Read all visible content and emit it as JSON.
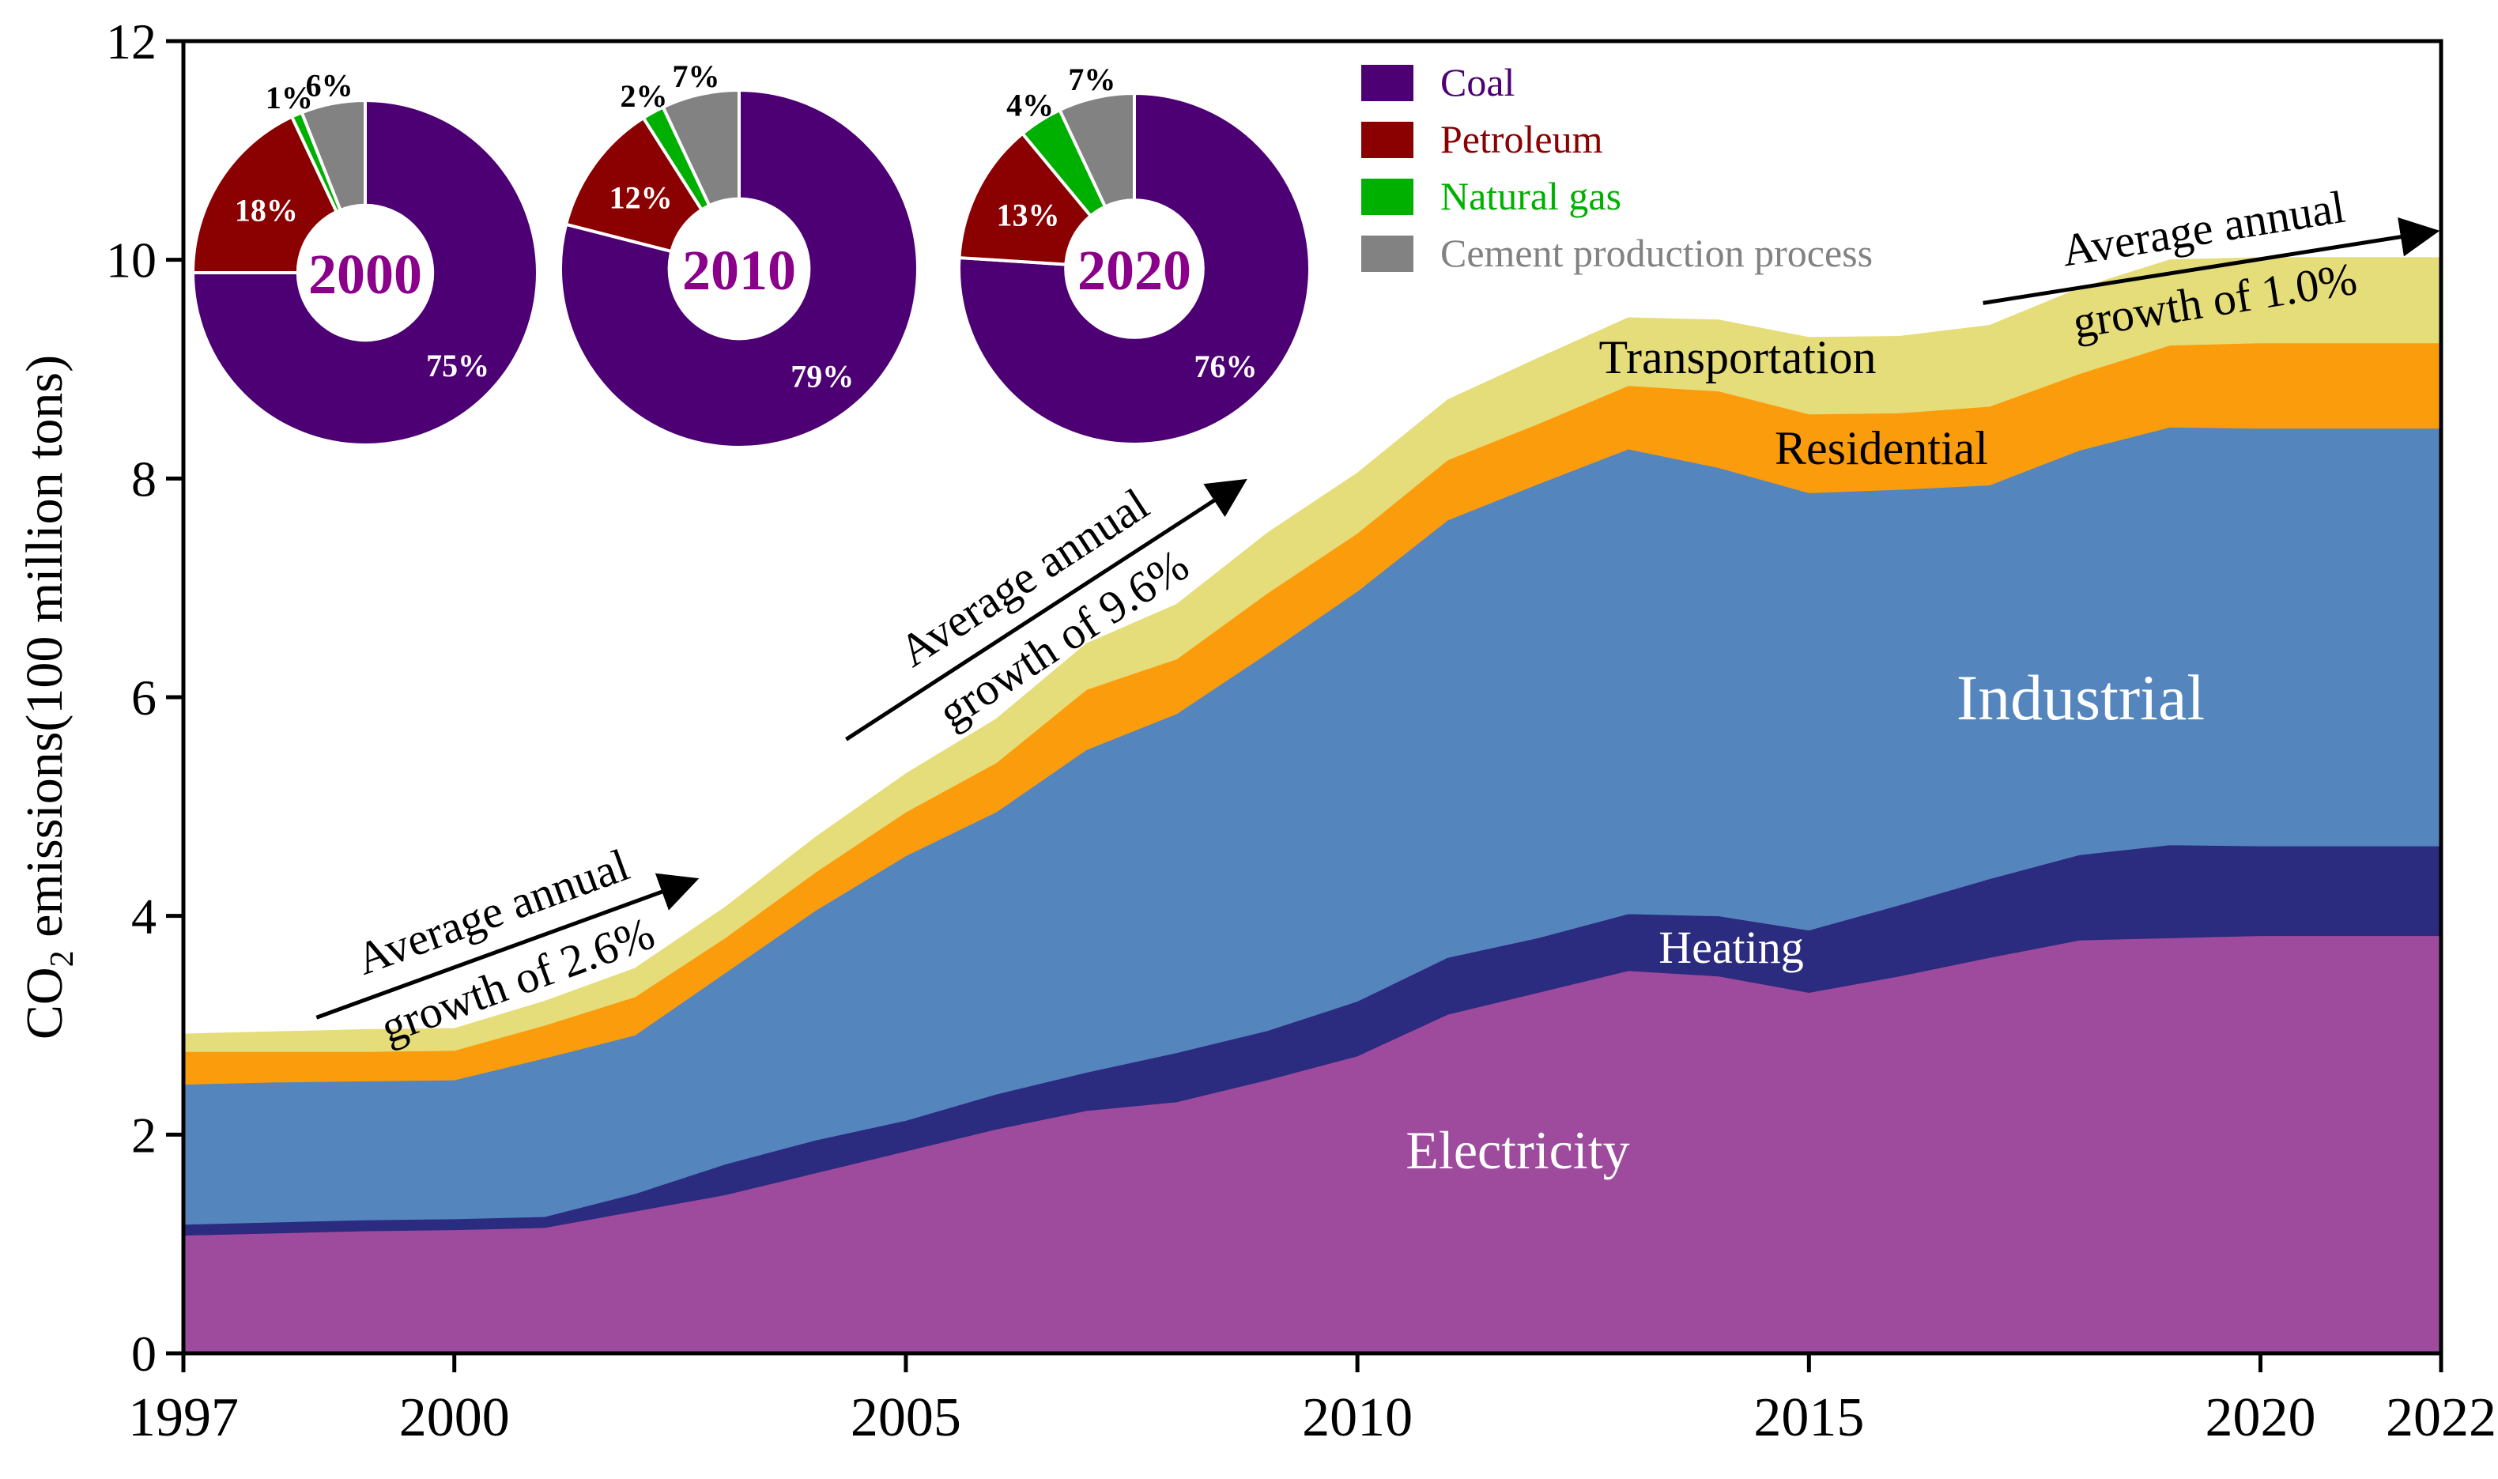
{
  "chart_data": {
    "type": "area",
    "stacked": true,
    "ylabel": "CO2 emissions(100 million tons)",
    "ylabel_main": "CO",
    "ylabel_sub": "2",
    "ylabel_rest": " emissions(100 million tons)",
    "ylim": [
      0,
      12
    ],
    "xlim": [
      1997,
      2022
    ],
    "y_ticks": [
      0,
      2,
      4,
      6,
      8,
      10,
      12
    ],
    "x_ticks": [
      1997,
      2000,
      2005,
      2010,
      2015,
      2020,
      2022
    ],
    "years": [
      1997,
      1998,
      1999,
      2000,
      2001,
      2002,
      2003,
      2004,
      2005,
      2006,
      2007,
      2008,
      2009,
      2010,
      2011,
      2012,
      2013,
      2014,
      2015,
      2016,
      2017,
      2018,
      2019,
      2020,
      2021,
      2022
    ],
    "series": [
      {
        "name": "Electricity",
        "color": "#9e4b9e",
        "values": [
          1.08,
          1.1,
          1.12,
          1.13,
          1.15,
          1.3,
          1.45,
          1.65,
          1.85,
          2.05,
          2.22,
          2.3,
          2.5,
          2.72,
          3.1,
          3.3,
          3.5,
          3.45,
          3.3,
          3.45,
          3.62,
          3.78,
          3.8,
          3.82,
          3.82,
          3.82
        ]
      },
      {
        "name": "Heating",
        "color": "#2b2b7f",
        "values": [
          0.1,
          0.1,
          0.1,
          0.1,
          0.1,
          0.16,
          0.28,
          0.3,
          0.28,
          0.32,
          0.35,
          0.45,
          0.45,
          0.5,
          0.52,
          0.5,
          0.52,
          0.55,
          0.57,
          0.65,
          0.72,
          0.78,
          0.85,
          0.82,
          0.82,
          0.82
        ]
      },
      {
        "name": "Industrial",
        "color": "#5585bd",
        "values": [
          1.28,
          1.28,
          1.27,
          1.27,
          1.45,
          1.45,
          1.75,
          2.1,
          2.42,
          2.58,
          2.95,
          3.1,
          3.45,
          3.75,
          4.0,
          4.15,
          4.25,
          4.1,
          4.0,
          3.8,
          3.6,
          3.7,
          3.82,
          3.82,
          3.82,
          3.82
        ]
      },
      {
        "name": "Residential",
        "color": "#fb9c0c",
        "values": [
          0.3,
          0.28,
          0.27,
          0.27,
          0.3,
          0.35,
          0.32,
          0.35,
          0.4,
          0.45,
          0.55,
          0.5,
          0.55,
          0.53,
          0.55,
          0.55,
          0.58,
          0.7,
          0.72,
          0.7,
          0.72,
          0.7,
          0.75,
          0.78,
          0.78,
          0.78
        ]
      },
      {
        "name": "Transportation",
        "color": "#e5dc7a",
        "values": [
          0.16,
          0.18,
          0.2,
          0.2,
          0.22,
          0.26,
          0.28,
          0.32,
          0.35,
          0.4,
          0.42,
          0.5,
          0.55,
          0.55,
          0.55,
          0.6,
          0.62,
          0.65,
          0.7,
          0.7,
          0.74,
          0.78,
          0.78,
          0.78,
          0.78,
          0.78
        ]
      }
    ],
    "area_labels": {
      "electricity": "Electricity",
      "heating": "Heating",
      "industrial": "Industrial",
      "residential": "Residential",
      "transportation": "Transportation"
    },
    "annotations": [
      {
        "line1": "Average annual",
        "line2": "growth of 2.6%"
      },
      {
        "line1": "Average annual",
        "line2": "growth of 9.6%"
      },
      {
        "line1": "Average annual",
        "line2": "growth of 1.0%"
      }
    ],
    "legend": {
      "position": "top-center",
      "entries": [
        {
          "name": "Coal",
          "color": "#4d0073"
        },
        {
          "name": "Petroleum",
          "color": "#8b0000"
        },
        {
          "name": "Natural gas",
          "color": "#00b000"
        },
        {
          "name": "Cement production process",
          "color": "#828282"
        }
      ]
    },
    "inset_pies": [
      {
        "year": "2000",
        "year_color": "#8a008a",
        "slices": [
          {
            "name": "Coal",
            "value": 75,
            "label": "75%"
          },
          {
            "name": "Petroleum",
            "value": 18,
            "label": "18%"
          },
          {
            "name": "Natural gas",
            "value": 1,
            "label": "1%"
          },
          {
            "name": "Cement production process",
            "value": 6,
            "label": "6%"
          }
        ]
      },
      {
        "year": "2010",
        "year_color": "#8a008a",
        "slices": [
          {
            "name": "Coal",
            "value": 79,
            "label": "79%"
          },
          {
            "name": "Petroleum",
            "value": 12,
            "label": "12%"
          },
          {
            "name": "Natural gas",
            "value": 2,
            "label": "2%"
          },
          {
            "name": "Cement production process",
            "value": 7,
            "label": "7%"
          }
        ]
      },
      {
        "year": "2020",
        "year_color": "#8a008a",
        "slices": [
          {
            "name": "Coal",
            "value": 76,
            "label": "76%"
          },
          {
            "name": "Petroleum",
            "value": 13,
            "label": "13%"
          },
          {
            "name": "Natural gas",
            "value": 4,
            "label": "4%"
          },
          {
            "name": "Cement production process",
            "value": 7,
            "label": "7%"
          }
        ]
      }
    ]
  }
}
